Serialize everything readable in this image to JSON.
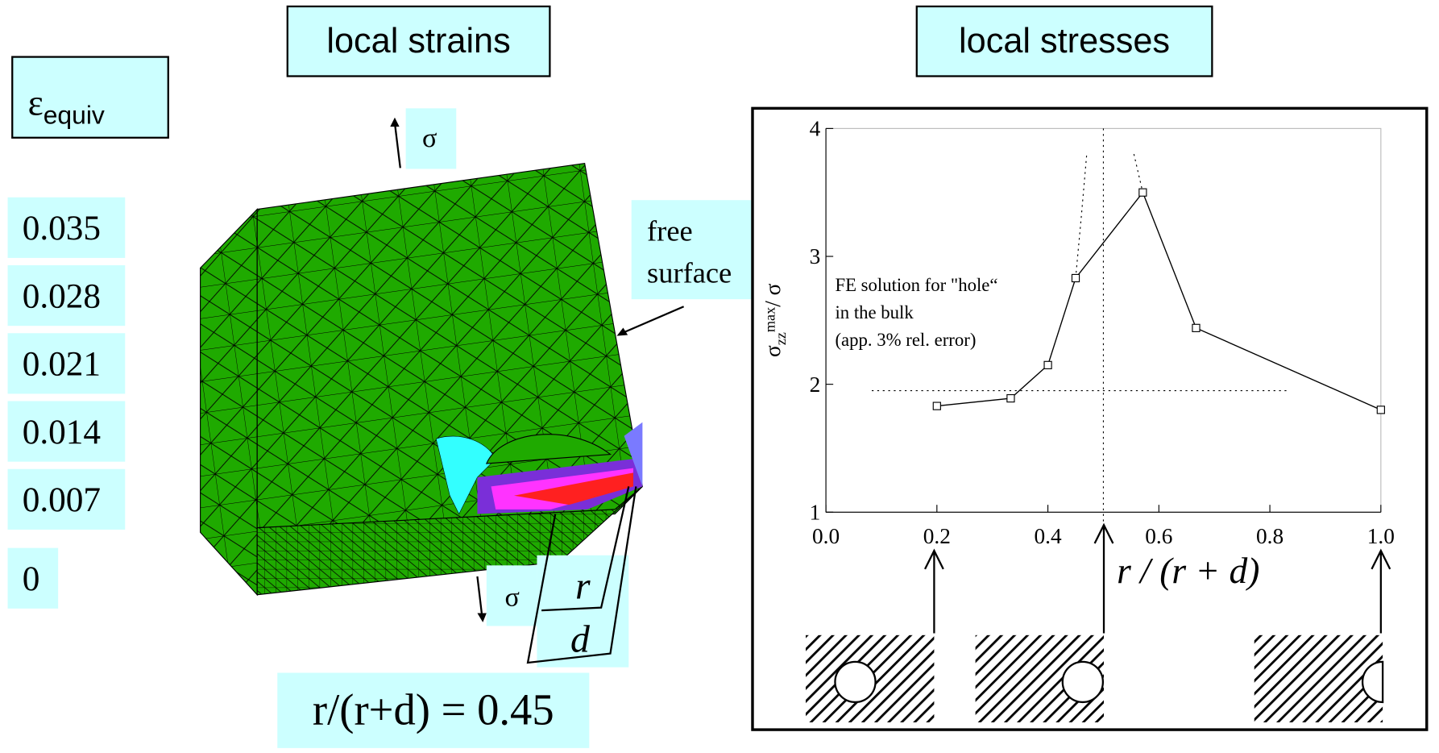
{
  "legend": {
    "symbol": "ε",
    "subscript": "equiv",
    "values": [
      "0.035",
      "0.028",
      "0.021",
      "0.014",
      "0.007",
      "0"
    ]
  },
  "left_panel": {
    "title": "local strains",
    "load_top": "σ",
    "load_bottom": "σ",
    "free_surface": [
      "free",
      "surface"
    ],
    "r_label": "r",
    "d_label": "d",
    "ratio": "r/(r+d) = 0.45"
  },
  "right_panel": {
    "title": "local stresses"
  },
  "chart_data": {
    "type": "line",
    "x": [
      0.2,
      0.333,
      0.4,
      0.45,
      0.571,
      0.667,
      1.0
    ],
    "values": [
      1.83,
      1.89,
      2.15,
      2.83,
      3.5,
      2.44,
      1.8
    ],
    "color": "#000000",
    "xlim": [
      0,
      1
    ],
    "ylim": [
      1,
      4
    ],
    "xticks": [
      {
        "value": 0,
        "label": "0.0"
      },
      0.2,
      0.4,
      0.6,
      0.8,
      {
        "value": 1,
        "label": "1.0"
      }
    ],
    "yticks": [
      1,
      2,
      3,
      4
    ],
    "x_label": "r / (r + d)",
    "y_label": {
      "symbol": "σ",
      "subscript": "zz",
      "superscript": "max",
      "rest": "/  σ"
    },
    "annotation": [
      "FE solution for \"hole“",
      "in the bulk",
      "(app. 3%      rel. error)"
    ],
    "reference_y": 1.95,
    "reference_x": 0.5,
    "dotted_curves": [
      {
        "x": [
          0.45,
          0.46,
          0.47
        ],
        "y": [
          2.83,
          3.3,
          3.8
        ]
      },
      {
        "x": [
          0.555,
          0.563,
          0.571
        ],
        "y": [
          3.8,
          3.65,
          3.5
        ]
      }
    ]
  }
}
